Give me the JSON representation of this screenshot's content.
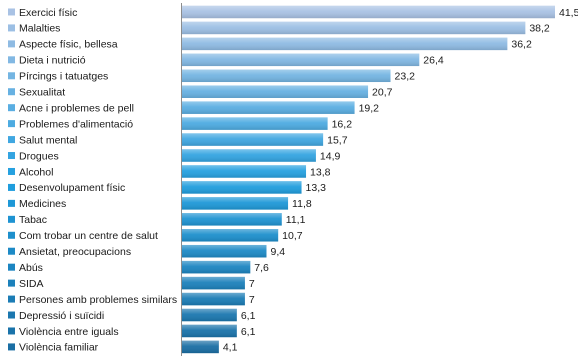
{
  "chart_data": {
    "type": "bar",
    "orientation": "horizontal",
    "title": "",
    "xlabel": "",
    "ylabel": "",
    "xlim": [
      0,
      41.5
    ],
    "grid": false,
    "legend": "none",
    "categories": [
      "Exercici físic",
      "Malalties",
      "Aspecte físic, bellesa",
      "Dieta i nutrició",
      "Pírcings i tatuatges",
      "Sexualitat",
      "Acne i problemes de pell",
      "Problemes d'alimentació",
      "Salut mental",
      "Drogues",
      "Alcohol",
      "Desenvolupament físic",
      "Medicines",
      "Tabac",
      "Com trobar un centre de salut",
      "Ansietat, preocupacions",
      "Abús",
      "SIDA",
      "Persones amb problemes similars",
      "Depressió i suïcidi",
      "Violència entre iguals",
      "Violència familiar"
    ],
    "values": [
      41.5,
      38.2,
      36.2,
      26.4,
      23.2,
      20.7,
      19.2,
      16.2,
      15.7,
      14.9,
      13.8,
      13.3,
      11.8,
      11.1,
      10.7,
      9.4,
      7.6,
      7,
      7,
      6.1,
      6.1,
      4.1
    ],
    "value_labels": [
      "41,5",
      "38,2",
      "36,2",
      "26,4",
      "23,2",
      "20,7",
      "19,2",
      "16,2",
      "15,7",
      "14,9",
      "13,8",
      "13,3",
      "11,8",
      "11,1",
      "10,7",
      "9,4",
      "7,6",
      "7",
      "7",
      "6,1",
      "6,1",
      "4,1"
    ],
    "colors": {
      "top_bar": "#a9c2e4",
      "middle_bar": "#1f9fe0",
      "bottom_bar": "#1a6ea4",
      "marker": "#2a7fb8",
      "axis": "#8c8c8c"
    }
  }
}
